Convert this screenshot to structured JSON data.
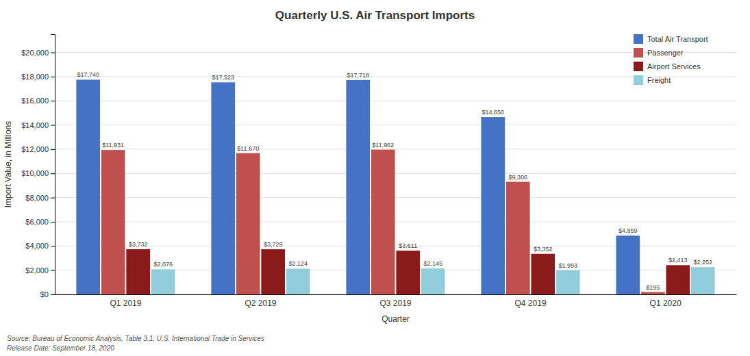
{
  "chart_data": {
    "type": "bar",
    "title": "Quarterly U.S. Air Transport Imports",
    "categories": [
      "Q1 2019",
      "Q2 2019",
      "Q3 2019",
      "Q4 2019",
      "Q1 2020"
    ],
    "series": [
      {
        "name": "Total Air Transport",
        "color": "#4472C4",
        "values": [
          17740,
          17523,
          17718,
          14650,
          4859
        ],
        "value_labels": [
          "$17,740",
          "$17,523",
          "$17,718",
          "$14,650",
          "$4,859"
        ]
      },
      {
        "name": "Passenger",
        "color": "#C0504D",
        "values": [
          11931,
          11670,
          11962,
          9306,
          195
        ],
        "value_labels": [
          "$11,931",
          "$11,670",
          "$11,962",
          "$9,306",
          "$195"
        ]
      },
      {
        "name": "Airport Services",
        "color": "#8B1A1A",
        "values": [
          3732,
          3729,
          3611,
          3352,
          2413
        ],
        "value_labels": [
          "$3,732",
          "$3,729",
          "$3,611",
          "$3,352",
          "$2,413"
        ]
      },
      {
        "name": "Freight",
        "color": "#92CDDC",
        "values": [
          2076,
          2124,
          2145,
          1993,
          2252
        ],
        "value_labels": [
          "$2,076",
          "$2,124",
          "$2,145",
          "$1,993",
          "$2,252"
        ]
      }
    ],
    "x_label": "Quarter",
    "y_label": "Import Value, in Millions",
    "ylim": [
      0,
      21500
    ],
    "yticks": [
      {
        "value": 0,
        "label": "$0"
      },
      {
        "value": 2000,
        "label": "$2,000"
      },
      {
        "value": 4000,
        "label": "$4,000"
      },
      {
        "value": 6000,
        "label": "$6,000"
      },
      {
        "value": 8000,
        "label": "$8,000"
      },
      {
        "value": 10000,
        "label": "$10,000"
      },
      {
        "value": 12000,
        "label": "$12,000"
      },
      {
        "value": 14000,
        "label": "$14,000"
      },
      {
        "value": 16000,
        "label": "$16,000"
      },
      {
        "value": 18000,
        "label": "$18,000"
      },
      {
        "value": 20000,
        "label": "$20,000"
      }
    ],
    "grid": true,
    "legend": "upper right",
    "data_labels": true,
    "annotations": [
      "Source: Bureau of Economic Analysis, Table 3.1. U.S. International Trade in Services",
      "Release Date: September 18, 2020"
    ]
  }
}
